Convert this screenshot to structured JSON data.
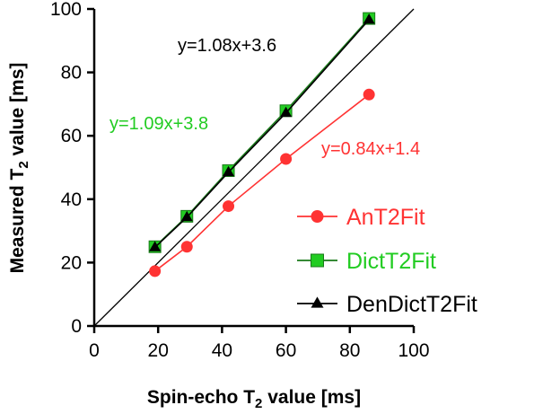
{
  "chart_data": {
    "type": "scatter",
    "xlabel": {
      "prefix": "Spin-echo T",
      "sub": "2",
      "suffix": " value [ms]"
    },
    "ylabel": {
      "prefix": "Measured T",
      "sub": "2",
      "suffix": " value [ms]"
    },
    "xlim": [
      0,
      100
    ],
    "ylim": [
      0,
      100
    ],
    "xticks": [
      "0",
      "20",
      "40",
      "60",
      "80",
      "100"
    ],
    "yticks": [
      "0",
      "20",
      "40",
      "60",
      "80",
      "100"
    ],
    "identity_line": true,
    "legend_position": "right",
    "series": [
      {
        "name": "AnT2Fit",
        "marker": "circle",
        "color": "#ff3333",
        "line_color": "#ff3333",
        "equation": "y=0.84x+1.4",
        "x": [
          19,
          29,
          42,
          60,
          86
        ],
        "y": [
          17.3,
          25,
          37.8,
          52.7,
          73
        ]
      },
      {
        "name": "DictT2Fit",
        "marker": "square",
        "color": "#22cc22",
        "line_color": "#1a7a1a",
        "equation": "y=1.09x+3.8",
        "x": [
          19,
          29,
          42,
          60,
          86
        ],
        "y": [
          25,
          34.6,
          49,
          67.9,
          97
        ]
      },
      {
        "name": "DenDictT2Fit",
        "marker": "triangle",
        "color": "#000000",
        "line_color": "#000000",
        "equation": "y=1.08x+3.6",
        "x": [
          19,
          29,
          42,
          60,
          86
        ],
        "y": [
          24.8,
          34.3,
          48.5,
          67.2,
          96.6
        ]
      }
    ]
  }
}
